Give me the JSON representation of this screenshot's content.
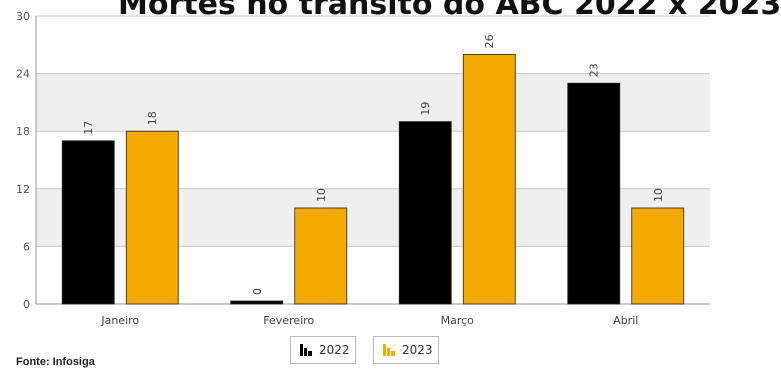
{
  "chart_data": {
    "type": "bar",
    "title": "Mortes no trânsito do ABC 2022 x 2023",
    "categories": [
      "Janeiro",
      "Fevereiro",
      "Março",
      "Abril"
    ],
    "series": [
      {
        "name": "2022",
        "values": [
          17,
          0,
          19,
          23
        ],
        "color": "#000000"
      },
      {
        "name": "2023",
        "values": [
          18,
          10,
          26,
          10
        ],
        "color": "#F5AA00"
      }
    ],
    "ylim": [
      0,
      30
    ],
    "yticks": [
      0,
      6,
      12,
      18,
      24,
      30
    ],
    "grid": true,
    "legend_position": "bottom"
  },
  "source": "Fonte: Infosiga"
}
